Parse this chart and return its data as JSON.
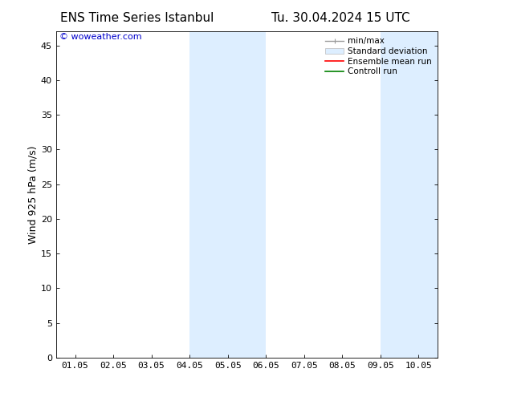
{
  "title_left": "ENS Time Series Istanbul",
  "title_right": "Tu. 30.04.2024 15 UTC",
  "ylabel": "Wind 925 hPa (m/s)",
  "watermark": "© woweather.com",
  "xlim_dates": [
    "01.05",
    "02.05",
    "03.05",
    "04.05",
    "05.05",
    "06.05",
    "07.05",
    "08.05",
    "09.05",
    "10.05"
  ],
  "ylim": [
    0,
    47
  ],
  "yticks": [
    0,
    5,
    10,
    15,
    20,
    25,
    30,
    35,
    40,
    45
  ],
  "shaded_regions": [
    {
      "xstart": 3.0,
      "xend": 5.0,
      "color": "#ddeeff"
    },
    {
      "xstart": 8.0,
      "xend": 9.5,
      "color": "#ddeeff"
    }
  ],
  "background_color": "#ffffff",
  "legend_entries": [
    {
      "label": "min/max",
      "color": "#999999",
      "lw": 1.0,
      "type": "line_with_ticks"
    },
    {
      "label": "Standard deviation",
      "color": "#ddeeff",
      "lw": 6,
      "type": "patch"
    },
    {
      "label": "Ensemble mean run",
      "color": "#ff0000",
      "lw": 1.2,
      "type": "line"
    },
    {
      "label": "Controll run",
      "color": "#008000",
      "lw": 1.2,
      "type": "line"
    }
  ],
  "title_fontsize": 11,
  "axis_label_fontsize": 9,
  "tick_fontsize": 8,
  "watermark_color": "#0000cc",
  "watermark_fontsize": 8,
  "fig_width": 6.34,
  "fig_height": 4.9,
  "dpi": 100
}
